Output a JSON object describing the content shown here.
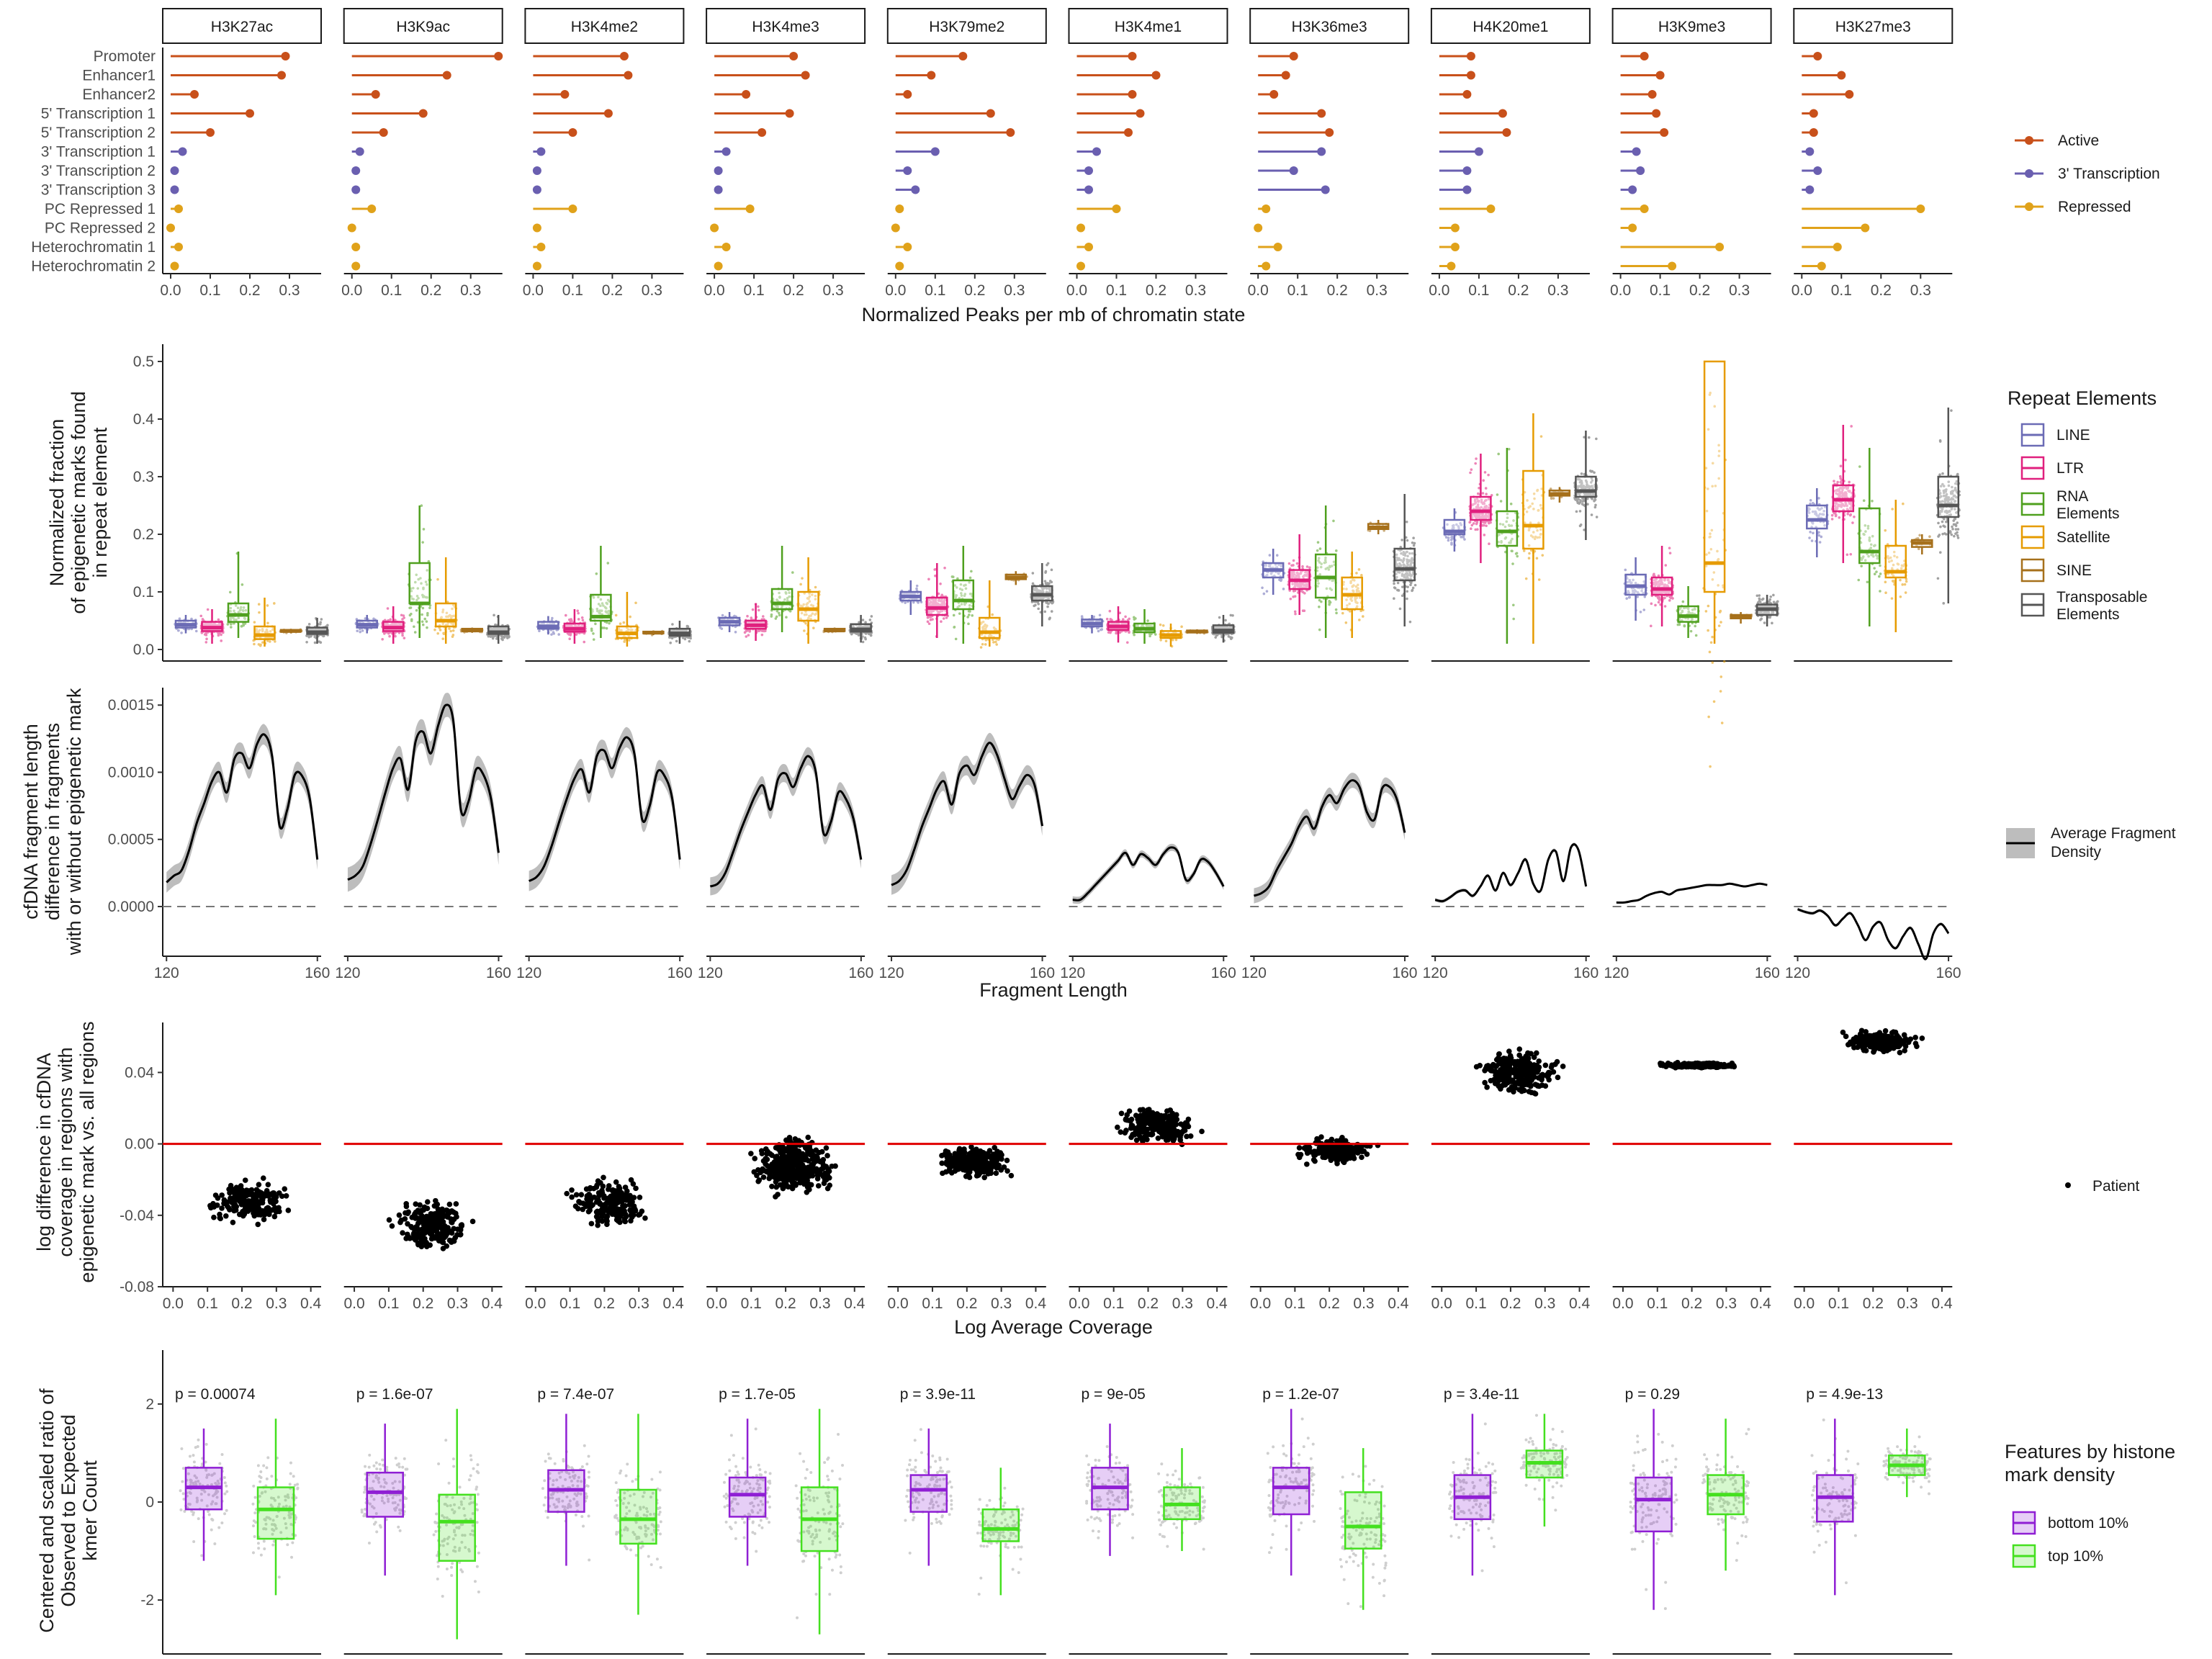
{
  "marks": [
    "H3K27ac",
    "H3K9ac",
    "H3K4me2",
    "H3K4me3",
    "H3K79me2",
    "H3K4me1",
    "H3K36me3",
    "H4K20me1",
    "H3K9me3",
    "H3K27me3"
  ],
  "colors": {
    "active": "#C8501A",
    "transcription3": "#6A5FB0",
    "repressed": "#E0A21A",
    "LINE": "#6B6BB5",
    "LTR": "#E0207E",
    "RNA": "#4FA01E",
    "Satellite": "#E69B00",
    "SINE": "#A6701B",
    "TE": "#555555",
    "bottom10": "#8F1FD4",
    "top10": "#44E01F",
    "ref": "#E00000"
  },
  "panel1": {
    "xlabel": "Normalized Peaks per mb of chromatin state",
    "states": [
      "Promoter",
      "Enhancer1",
      "Enhancer2",
      "5' Transcription 1",
      "5' Transcription 2",
      "3' Transcription 1",
      "3' Transcription 2",
      "3' Transcription 3",
      "PC Repressed 1",
      "PC Repressed 2",
      "Heterochromatin 1",
      "Heterochromatin 2"
    ],
    "groups": [
      "active",
      "active",
      "active",
      "active",
      "active",
      "transcription3",
      "transcription3",
      "transcription3",
      "repressed",
      "repressed",
      "repressed",
      "repressed"
    ],
    "xlim": [
      -0.02,
      0.38
    ],
    "xticks": [
      0.0,
      0.1,
      0.2,
      0.3
    ],
    "xticklabels": [
      "0.0",
      "0.1",
      "0.2",
      "0.3"
    ],
    "legend": [
      "Active",
      "3' Transcription",
      "Repressed"
    ],
    "values": [
      [
        0.29,
        0.28,
        0.06,
        0.2,
        0.1,
        0.03,
        0.01,
        0.01,
        0.02,
        0.0,
        0.02,
        0.01
      ],
      [
        0.37,
        0.24,
        0.06,
        0.18,
        0.08,
        0.02,
        0.01,
        0.01,
        0.05,
        0.0,
        0.01,
        0.01
      ],
      [
        0.23,
        0.24,
        0.08,
        0.19,
        0.1,
        0.02,
        0.01,
        0.01,
        0.1,
        0.01,
        0.02,
        0.01
      ],
      [
        0.2,
        0.23,
        0.08,
        0.19,
        0.12,
        0.03,
        0.01,
        0.01,
        0.09,
        0.0,
        0.03,
        0.01
      ],
      [
        0.17,
        0.09,
        0.03,
        0.24,
        0.29,
        0.1,
        0.03,
        0.05,
        0.01,
        0.0,
        0.03,
        0.01
      ],
      [
        0.14,
        0.2,
        0.14,
        0.16,
        0.13,
        0.05,
        0.03,
        0.03,
        0.1,
        0.01,
        0.03,
        0.01
      ],
      [
        0.09,
        0.07,
        0.04,
        0.16,
        0.18,
        0.16,
        0.09,
        0.17,
        0.02,
        0.0,
        0.05,
        0.02
      ],
      [
        0.08,
        0.08,
        0.07,
        0.16,
        0.17,
        0.1,
        0.07,
        0.07,
        0.13,
        0.04,
        0.04,
        0.03
      ],
      [
        0.06,
        0.1,
        0.08,
        0.09,
        0.11,
        0.04,
        0.05,
        0.03,
        0.06,
        0.03,
        0.25,
        0.13
      ],
      [
        0.04,
        0.1,
        0.12,
        0.03,
        0.03,
        0.02,
        0.04,
        0.02,
        0.3,
        0.16,
        0.09,
        0.05
      ]
    ]
  },
  "panel2": {
    "ylabel": [
      "Normalized fraction",
      "of epigenetic marks found",
      "in repeat element"
    ],
    "ylim": [
      -0.02,
      0.53
    ],
    "yticks": [
      0.0,
      0.1,
      0.2,
      0.3,
      0.4,
      0.5
    ],
    "yticklabels": [
      "0.0",
      "0.1",
      "0.2",
      "0.3",
      "0.4",
      "0.5"
    ],
    "legend_title": "Repeat Elements",
    "elements": [
      "LINE",
      "LTR",
      "RNA",
      "Satellite",
      "SINE",
      "TE"
    ],
    "legend_labels": [
      "LINE",
      "LTR",
      "RNA Elements",
      "Satellite",
      "SINE",
      "Transposable Elements"
    ],
    "boxes": [
      [
        [
          0.033,
          0.038,
          0.043,
          0.05,
          0.028,
          0.06
        ],
        [
          0.025,
          0.032,
          0.038,
          0.048,
          0.01,
          0.07
        ],
        [
          0.04,
          0.048,
          0.06,
          0.08,
          0.02,
          0.17
        ],
        [
          0.012,
          0.018,
          0.025,
          0.04,
          0.005,
          0.09
        ],
        [
          0.029,
          0.031,
          0.032,
          0.034,
          0.028,
          0.036
        ],
        [
          0.022,
          0.027,
          0.03,
          0.038,
          0.01,
          0.055
        ]
      ],
      [
        [
          0.033,
          0.038,
          0.043,
          0.05,
          0.028,
          0.06
        ],
        [
          0.025,
          0.032,
          0.038,
          0.048,
          0.01,
          0.075
        ],
        [
          0.055,
          0.08,
          0.08,
          0.15,
          0.02,
          0.25
        ],
        [
          0.03,
          0.04,
          0.05,
          0.08,
          0.01,
          0.16
        ],
        [
          0.03,
          0.032,
          0.033,
          0.036,
          0.029,
          0.038
        ],
        [
          0.022,
          0.027,
          0.03,
          0.04,
          0.01,
          0.06
        ]
      ],
      [
        [
          0.03,
          0.036,
          0.04,
          0.048,
          0.026,
          0.058
        ],
        [
          0.025,
          0.031,
          0.036,
          0.045,
          0.01,
          0.07
        ],
        [
          0.042,
          0.05,
          0.057,
          0.095,
          0.02,
          0.18
        ],
        [
          0.015,
          0.02,
          0.028,
          0.04,
          0.005,
          0.1
        ],
        [
          0.026,
          0.028,
          0.029,
          0.031,
          0.025,
          0.033
        ],
        [
          0.02,
          0.024,
          0.028,
          0.036,
          0.01,
          0.05
        ]
      ],
      [
        [
          0.038,
          0.042,
          0.048,
          0.055,
          0.03,
          0.065
        ],
        [
          0.03,
          0.036,
          0.042,
          0.05,
          0.015,
          0.08
        ],
        [
          0.055,
          0.07,
          0.08,
          0.105,
          0.03,
          0.18
        ],
        [
          0.045,
          0.05,
          0.07,
          0.1,
          0.01,
          0.16
        ],
        [
          0.031,
          0.032,
          0.033,
          0.036,
          0.03,
          0.038
        ],
        [
          0.026,
          0.031,
          0.035,
          0.044,
          0.012,
          0.06
        ]
      ],
      [
        [
          0.08,
          0.085,
          0.092,
          0.1,
          0.06,
          0.12
        ],
        [
          0.045,
          0.06,
          0.072,
          0.09,
          0.02,
          0.15
        ],
        [
          0.058,
          0.07,
          0.085,
          0.12,
          0.01,
          0.18
        ],
        [
          0.015,
          0.02,
          0.03,
          0.055,
          0.005,
          0.12
        ],
        [
          0.118,
          0.122,
          0.125,
          0.13,
          0.112,
          0.136
        ],
        [
          0.068,
          0.085,
          0.095,
          0.11,
          0.04,
          0.15
        ]
      ],
      [
        [
          0.035,
          0.04,
          0.045,
          0.052,
          0.028,
          0.06
        ],
        [
          0.028,
          0.034,
          0.04,
          0.048,
          0.012,
          0.075
        ],
        [
          0.025,
          0.03,
          0.036,
          0.045,
          0.01,
          0.07
        ],
        [
          0.018,
          0.02,
          0.025,
          0.032,
          0.005,
          0.045
        ],
        [
          0.028,
          0.03,
          0.031,
          0.033,
          0.027,
          0.035
        ],
        [
          0.024,
          0.029,
          0.033,
          0.042,
          0.012,
          0.06
        ]
      ],
      [
        [
          0.115,
          0.125,
          0.138,
          0.15,
          0.095,
          0.175
        ],
        [
          0.09,
          0.105,
          0.12,
          0.138,
          0.06,
          0.2
        ],
        [
          0.07,
          0.09,
          0.125,
          0.165,
          0.02,
          0.25
        ],
        [
          0.05,
          0.07,
          0.095,
          0.125,
          0.02,
          0.17
        ],
        [
          0.205,
          0.209,
          0.212,
          0.218,
          0.2,
          0.225
        ],
        [
          0.11,
          0.12,
          0.14,
          0.175,
          0.04,
          0.27
        ]
      ],
      [
        [
          0.19,
          0.2,
          0.205,
          0.225,
          0.17,
          0.245
        ],
        [
          0.205,
          0.225,
          0.24,
          0.265,
          0.15,
          0.34
        ],
        [
          0.14,
          0.18,
          0.205,
          0.24,
          0.01,
          0.35
        ],
        [
          0.135,
          0.175,
          0.215,
          0.31,
          0.01,
          0.41
        ],
        [
          0.262,
          0.267,
          0.27,
          0.276,
          0.255,
          0.282
        ],
        [
          0.25,
          0.265,
          0.275,
          0.3,
          0.19,
          0.38
        ]
      ],
      [
        [
          0.08,
          0.095,
          0.11,
          0.13,
          0.05,
          0.16
        ],
        [
          0.08,
          0.095,
          0.105,
          0.125,
          0.04,
          0.18
        ],
        [
          0.04,
          0.048,
          0.058,
          0.075,
          0.02,
          0.11
        ],
        [
          0.08,
          0.1,
          0.15,
          0.5,
          0.01,
          0.5
        ],
        [
          0.05,
          0.054,
          0.057,
          0.06,
          0.045,
          0.065
        ],
        [
          0.052,
          0.06,
          0.07,
          0.078,
          0.04,
          0.095
        ]
      ],
      [
        [
          0.195,
          0.21,
          0.225,
          0.25,
          0.16,
          0.28
        ],
        [
          0.215,
          0.24,
          0.26,
          0.285,
          0.15,
          0.39
        ],
        [
          0.12,
          0.15,
          0.17,
          0.245,
          0.04,
          0.35
        ],
        [
          0.09,
          0.125,
          0.135,
          0.18,
          0.03,
          0.26
        ],
        [
          0.172,
          0.178,
          0.185,
          0.19,
          0.165,
          0.2
        ],
        [
          0.2,
          0.23,
          0.25,
          0.3,
          0.08,
          0.42
        ]
      ]
    ]
  },
  "panel3": {
    "ylabel": [
      "cfDNA fragment length",
      "difference in fragments",
      "with or without epigenetic mark"
    ],
    "xlabel": "Fragment Length",
    "xlim": [
      119,
      161
    ],
    "xticks": [
      120,
      160
    ],
    "xticklabels": [
      "120",
      "160"
    ],
    "ylim": [
      -0.00037,
      0.00163
    ],
    "yticks": [
      0.0,
      0.0005,
      0.001,
      0.0015
    ],
    "yticklabels": [
      "0.0000",
      "0.0005",
      "0.0010",
      "0.0015"
    ],
    "legend_label": "Average Fragment Density",
    "x": [
      120,
      122,
      124,
      126,
      128,
      130,
      132,
      134,
      136,
      138,
      140,
      142,
      144,
      146,
      148,
      150,
      152,
      154,
      156,
      158,
      160
    ],
    "curves": [
      [
        0.00018,
        0.00023,
        0.00027,
        0.00042,
        0.00062,
        0.00077,
        0.00093,
        0.001,
        0.00085,
        0.0011,
        0.00114,
        0.00103,
        0.00121,
        0.00128,
        0.00112,
        0.0006,
        0.00072,
        0.00098,
        0.00097,
        0.0008,
        0.00035
      ],
      [
        0.0002,
        0.00023,
        0.0003,
        0.00046,
        0.00065,
        0.00085,
        0.00103,
        0.0011,
        0.00087,
        0.00123,
        0.0013,
        0.00114,
        0.00135,
        0.0015,
        0.00138,
        0.00072,
        0.00078,
        0.00102,
        0.00098,
        0.0008,
        0.0004
      ],
      [
        0.00019,
        0.00022,
        0.0003,
        0.00045,
        0.00063,
        0.0008,
        0.00095,
        0.00102,
        0.00085,
        0.00112,
        0.00116,
        0.00103,
        0.00118,
        0.00126,
        0.00113,
        0.00065,
        0.00075,
        0.001,
        0.00097,
        0.0008,
        0.00035
      ],
      [
        0.00015,
        0.00017,
        0.00025,
        0.0004,
        0.00056,
        0.0007,
        0.00083,
        0.0009,
        0.00072,
        0.00095,
        0.00099,
        0.00089,
        0.00103,
        0.00112,
        0.001,
        0.00055,
        0.00063,
        0.00085,
        0.0008,
        0.00065,
        0.00035
      ],
      [
        0.00016,
        0.00019,
        0.00027,
        0.00042,
        0.00059,
        0.00073,
        0.00087,
        0.00093,
        0.00076,
        0.00099,
        0.00105,
        0.00098,
        0.00112,
        0.00122,
        0.00113,
        0.00095,
        0.0008,
        0.0009,
        0.00098,
        0.0009,
        0.0006
      ],
      [
        5e-05,
        5e-05,
        0.0001,
        0.00016,
        0.00022,
        0.00028,
        0.00034,
        0.0004,
        0.00031,
        0.00039,
        0.00036,
        0.00031,
        0.00039,
        0.00044,
        0.0004,
        0.0002,
        0.00024,
        0.00035,
        0.00033,
        0.00025,
        0.00015
      ],
      [
        8e-05,
        0.0001,
        0.00015,
        0.00027,
        0.00037,
        0.00047,
        0.0006,
        0.00067,
        0.00058,
        0.00074,
        0.00083,
        0.00077,
        0.00088,
        0.00094,
        0.00089,
        0.0007,
        0.00065,
        0.00088,
        0.00089,
        0.00079,
        0.00055
      ],
      [
        5e-05,
        4e-05,
        7e-05,
        0.00011,
        0.00012,
        8e-05,
        0.00015,
        0.00023,
        0.00012,
        0.00025,
        0.00016,
        0.00025,
        0.00035,
        0.00017,
        0.00012,
        0.00035,
        0.00041,
        0.00019,
        0.00044,
        0.00042,
        0.00015
      ],
      [
        3e-05,
        3e-05,
        4e-05,
        5e-05,
        8e-05,
        0.0001,
        0.00011,
        9e-05,
        0.00012,
        0.00013,
        0.00014,
        0.00015,
        0.00016,
        0.00016,
        0.00016,
        0.00017,
        0.00016,
        0.00015,
        0.00016,
        0.00017,
        0.00016
      ],
      [
        -2e-05,
        -4e-05,
        -5e-05,
        -3e-05,
        -7e-05,
        -0.00014,
        -9e-05,
        -5e-05,
        -0.00014,
        -0.00025,
        -0.00015,
        -0.00012,
        -0.00025,
        -0.00031,
        -0.00022,
        -0.00016,
        -0.00028,
        -0.00039,
        -0.0002,
        -0.00013,
        -0.0002
      ]
    ]
  },
  "panel4": {
    "ylabel": [
      "log difference in cfDNA",
      "coverage in regions with",
      "epigenetic mark vs. all regions"
    ],
    "xlabel": "Log Average Coverage",
    "xlim": [
      -0.03,
      0.43
    ],
    "xticks": [
      0.0,
      0.1,
      0.2,
      0.3,
      0.4
    ],
    "xticklabels": [
      "0.0",
      "0.1",
      "0.2",
      "0.3",
      "0.4"
    ],
    "ylim": [
      -0.08,
      0.068
    ],
    "yticks": [
      -0.08,
      -0.04,
      0.0,
      0.04
    ],
    "yticklabels": [
      "-0.08",
      "-0.04",
      "0.00",
      "0.04"
    ],
    "legend_label": "Patient",
    "centers": [
      -0.032,
      -0.045,
      -0.033,
      -0.012,
      -0.01,
      0.01,
      -0.004,
      0.04,
      0.044,
      0.057
    ],
    "spreads": [
      0.008,
      0.01,
      0.009,
      0.011,
      0.006,
      0.007,
      0.005,
      0.008,
      0.001,
      0.004
    ],
    "counts": [
      200,
      220,
      200,
      380,
      260,
      230,
      220,
      260,
      230,
      230
    ]
  },
  "panel5": {
    "ylabel": [
      "Centered and scaled ratio of",
      "Observed to Expected",
      "kmer Count"
    ],
    "ylim": [
      -3.1,
      3.1
    ],
    "yticks": [
      -2,
      0,
      2
    ],
    "yticklabels": [
      "-2",
      "0",
      "2"
    ],
    "legend_title": [
      "Features by histone",
      "mark density"
    ],
    "legend_labels": [
      "bottom 10%",
      "top 10%"
    ],
    "pvalues": [
      "p = 0.00074",
      "p = 1.6e-07",
      "p = 7.4e-07",
      "p = 1.7e-05",
      "p = 3.9e-11",
      "p = 9e-05",
      "p = 1.2e-07",
      "p = 3.4e-11",
      "p = 0.29",
      "p = 4.9e-13"
    ],
    "boxes": [
      [
        [
          -0.15,
          0.3,
          0.7,
          -1.2,
          1.5
        ],
        [
          -0.75,
          -0.15,
          0.3,
          -1.9,
          1.7
        ]
      ],
      [
        [
          -0.3,
          0.2,
          0.6,
          -1.5,
          1.6
        ],
        [
          -1.2,
          -0.4,
          0.15,
          -2.8,
          1.9
        ]
      ],
      [
        [
          -0.2,
          0.25,
          0.65,
          -1.3,
          1.8
        ],
        [
          -0.85,
          -0.35,
          0.25,
          -2.3,
          1.8
        ]
      ],
      [
        [
          -0.3,
          0.15,
          0.5,
          -1.3,
          1.7
        ],
        [
          -1.0,
          -0.35,
          0.3,
          -2.7,
          1.9
        ]
      ],
      [
        [
          -0.2,
          0.25,
          0.55,
          -1.3,
          1.5
        ],
        [
          -0.8,
          -0.55,
          -0.15,
          -1.9,
          0.7
        ]
      ],
      [
        [
          -0.15,
          0.3,
          0.7,
          -1.1,
          1.6
        ],
        [
          -0.35,
          -0.05,
          0.3,
          -1.0,
          1.1
        ]
      ],
      [
        [
          -0.25,
          0.3,
          0.7,
          -1.5,
          1.9
        ],
        [
          -0.95,
          -0.5,
          0.2,
          -2.2,
          1.1
        ]
      ],
      [
        [
          -0.35,
          0.1,
          0.55,
          -1.5,
          1.8
        ],
        [
          0.5,
          0.8,
          1.05,
          -0.5,
          1.8
        ]
      ],
      [
        [
          -0.6,
          0.05,
          0.5,
          -2.2,
          1.9
        ],
        [
          -0.25,
          0.15,
          0.55,
          -1.4,
          1.7
        ]
      ],
      [
        [
          -0.4,
          0.1,
          0.55,
          -1.9,
          1.7
        ],
        [
          0.55,
          0.75,
          0.95,
          0.1,
          1.5
        ]
      ]
    ]
  }
}
